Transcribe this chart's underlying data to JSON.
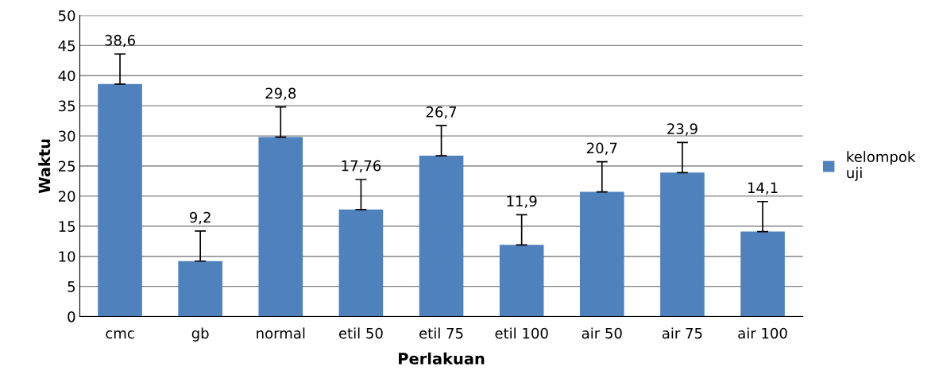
{
  "chart_data": {
    "type": "bar",
    "xlabel": "Perlakuan",
    "ylabel": "Waktu",
    "categories": [
      "cmc",
      "gb",
      "normal",
      "etil 50",
      "etil 75",
      "etil 100",
      "air 50",
      "air 75",
      "air 100"
    ],
    "series": [
      {
        "name": "kelompok uji",
        "color": "#4f81bd",
        "values": [
          38.6,
          9.2,
          29.8,
          17.76,
          26.7,
          11.9,
          20.7,
          23.9,
          14.1
        ],
        "errors": [
          [
            38.6,
            43.6
          ],
          [
            9.2,
            14.2
          ],
          [
            29.8,
            34.8
          ],
          [
            17.76,
            22.76
          ],
          [
            26.7,
            31.7
          ],
          [
            11.9,
            16.9
          ],
          [
            20.7,
            25.7
          ],
          [
            23.9,
            28.9
          ],
          [
            14.1,
            19.1
          ]
        ],
        "value_labels": [
          "38,6",
          "9,2",
          "29,8",
          "17,76",
          "26,7",
          "11,9",
          "20,7",
          "23,9",
          "14,1"
        ]
      }
    ],
    "ylim": [
      0,
      50
    ],
    "yticks": [
      0,
      5,
      10,
      15,
      20,
      25,
      30,
      35,
      40,
      45,
      50
    ],
    "grid": "y",
    "legend": "right"
  }
}
